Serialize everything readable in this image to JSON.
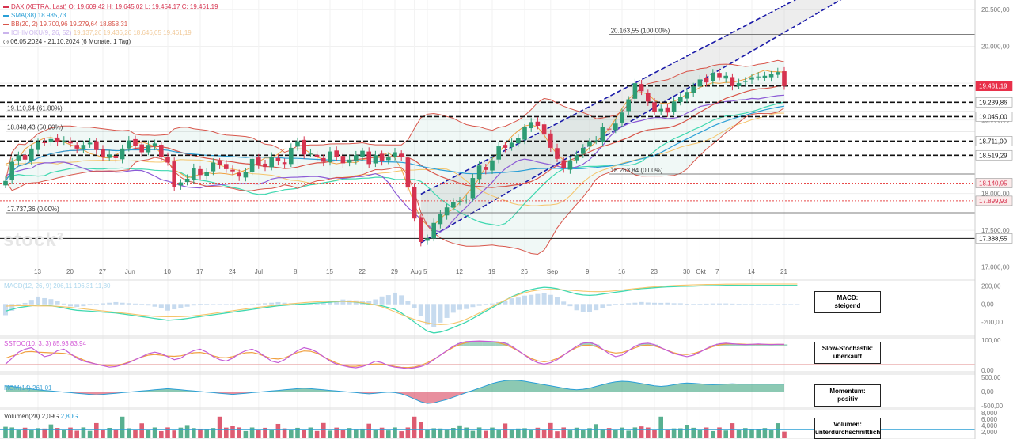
{
  "legend": {
    "title": "DAX (XETRA, Last)",
    "ohlc": "O: 19.609,42  H: 19.645,02  L: 19.454,17  C: 19.461,19",
    "sma": "SMA(38)",
    "sma_val": "18.985,73",
    "bb": "BB(20, 2)",
    "bb_vals": "19.700,96  19.279,64  18.858,31",
    "ichimoku": "ICHIMOKU(9, 26, 52)",
    "ichimoku_vals": "19.137,26  19.436,26  18.646,05  19.461,19",
    "range": "06.05.2024 - 21.10.2024  (6 Monate, 1 Tag)"
  },
  "logo_text": "stock³",
  "colors": {
    "up": "#2e9c74",
    "down": "#d6334f",
    "sma": "#2a9fd6",
    "bb": "#d8554a",
    "tenkan": "#f0a040",
    "kijun": "#8c5bd6",
    "span_a": "#3fd8b0",
    "span_b": "#f5c46a",
    "channel": "#1a1aa8",
    "ask": "#e8304a"
  },
  "price_axis": {
    "ticks": [
      "20.500,00",
      "20.000,00",
      "19.500,00",
      "19.000,00",
      "18.500,00",
      "18.000,00",
      "17.500,00",
      "17.000,00"
    ],
    "tick_values": [
      20500,
      20000,
      19500,
      19000,
      18500,
      18000,
      17500,
      17000
    ],
    "ylim": [
      16920,
      20630
    ]
  },
  "x_axis": {
    "labels": [
      "13",
      "20",
      "27",
      "Jun",
      "10",
      "17",
      "24",
      "Jul",
      "8",
      "15",
      "22",
      "29",
      "Aug",
      "5",
      "12",
      "19",
      "26",
      "Sep",
      "9",
      "16",
      "23",
      "30",
      "Okt",
      "7",
      "14",
      "21"
    ],
    "label_index": [
      5,
      10,
      15,
      19,
      25,
      30,
      35,
      39,
      45,
      50,
      55,
      60,
      63,
      65,
      70,
      75,
      80,
      84,
      90,
      95,
      100,
      105,
      107,
      110,
      115,
      120
    ]
  },
  "price_labels": [
    {
      "text": "19.461,19",
      "value": 19461.19,
      "style": "red"
    },
    {
      "text": "19.239,86",
      "value": 19239.86,
      "style": "white"
    },
    {
      "text": "19.045,00",
      "value": 19045.0,
      "style": "white"
    },
    {
      "text": "18.711,00",
      "value": 18711.0,
      "style": "white"
    },
    {
      "text": "18.519,29",
      "value": 18519.29,
      "style": "white"
    },
    {
      "text": "18.140,95",
      "value": 18140.95,
      "style": "redtext"
    },
    {
      "text": "17.899,93",
      "value": 17899.93,
      "style": "redtext"
    },
    {
      "text": "17.388,55",
      "value": 17388.55,
      "style": "white"
    }
  ],
  "fib_labels": [
    {
      "text": "20.163,55 (100.00%)",
      "value": 20163.55,
      "x_index": 93
    },
    {
      "text": "19.110,64 (61.80%)",
      "value": 19110.64,
      "x_index": 0
    },
    {
      "text": "18.848,43 (50.00%)",
      "value": 18848.43,
      "x_index": 0
    },
    {
      "text": "17.737,36 (0.00%)",
      "value": 17737.36,
      "x_index": 0
    },
    {
      "text": "18.263,84 (0.00%)",
      "value": 18263.84,
      "x_index": 93
    }
  ],
  "panels": {
    "macd": {
      "label": "MACD(12, 26, 9)",
      "values": "206,11  196,31  11,80",
      "ticks": [
        "200,00",
        "0,00",
        "-200,00"
      ],
      "annotation": "MACD:\nsteigend"
    },
    "stoch": {
      "label": "SSTOC(10, 3, 3)",
      "values": "85,93  83,94",
      "ticks": [
        "100,00",
        "0,00"
      ],
      "annotation": "Slow-Stochastik:\nüberkauft"
    },
    "momentum": {
      "label": "MOM(14)",
      "values": "261,01",
      "ticks": [
        "500,00",
        "0,00",
        "-500,00"
      ],
      "annotation": "Momentum:\npositiv"
    },
    "volume": {
      "label": "Volumen(28)",
      "values": "2,09G",
      "values2": "2,80G",
      "ticks": [
        "8,000",
        "6,000",
        "4,000",
        "2,000"
      ],
      "annotation": "Volumen:\nunterdurchschnittlich"
    }
  },
  "chart_data": {
    "type": "candlestick",
    "title": "DAX (XETRA, Last)",
    "period": "06.05.2024 - 21.10.2024",
    "approx_closes": [
      18170,
      18430,
      18520,
      18460,
      18610,
      18700,
      18690,
      18740,
      18700,
      18720,
      18680,
      18610,
      18660,
      18690,
      18590,
      18490,
      18530,
      18480,
      18610,
      18720,
      18650,
      18560,
      18660,
      18680,
      18500,
      18420,
      18090,
      18150,
      18200,
      18350,
      18250,
      18290,
      18420,
      18390,
      18330,
      18300,
      18230,
      18290,
      18470,
      18390,
      18360,
      18500,
      18440,
      18400,
      18620,
      18710,
      18530,
      18540,
      18500,
      18430,
      18570,
      18490,
      18410,
      18460,
      18520,
      18580,
      18400,
      18520,
      18440,
      18500,
      18560,
      18500,
      18080,
      17660,
      17340,
      17390,
      17600,
      17720,
      17810,
      17880,
      17900,
      17930,
      18210,
      18380,
      18320,
      18450,
      18640,
      18620,
      18690,
      18750,
      18900,
      18970,
      18920,
      18800,
      18620,
      18470,
      18340,
      18450,
      18520,
      18620,
      18710,
      18720,
      18900,
      18870,
      18950,
      19100,
      19280,
      19500,
      19390,
      19250,
      19110,
      19150,
      19100,
      19250,
      19310,
      19380,
      19450,
      19550,
      19510,
      19640,
      19580,
      19600,
      19460,
      19500,
      19530,
      19580,
      19590,
      19600,
      19620,
      19650,
      19461.19
    ],
    "channel": {
      "points": [
        [
          64,
          17990
        ],
        [
          126,
          20830
        ]
      ],
      "lower": [
        [
          64,
          17330
        ],
        [
          130,
          20700
        ]
      ]
    },
    "macd": [
      -80,
      -60,
      -40,
      -30,
      -20,
      -10,
      -15,
      -20,
      -30,
      -45,
      -60,
      -70,
      -75,
      -80,
      -85,
      -90,
      -95,
      -100,
      -110,
      -120,
      -130,
      -140,
      -150,
      -160,
      -170,
      -180,
      -175,
      -170,
      -160,
      -150,
      -140,
      -130,
      -120,
      -110,
      -100,
      -90,
      -80,
      -70,
      -60,
      -50,
      -40,
      -30,
      -20,
      -15,
      -10,
      -5,
      0,
      5,
      10,
      15,
      20,
      25,
      30,
      25,
      20,
      10,
      0,
      -10,
      -20,
      -40,
      -60,
      -100,
      -150,
      -200,
      -250,
      -300,
      -320,
      -310,
      -290,
      -260,
      -230,
      -200,
      -160,
      -120,
      -80,
      -40,
      0,
      40,
      80,
      110,
      140,
      160,
      175,
      185,
      180,
      170,
      150,
      130,
      110,
      100,
      95,
      100,
      110,
      120,
      130,
      140,
      150,
      160,
      170,
      175,
      180,
      185,
      190,
      192,
      195,
      196,
      198,
      200,
      202,
      204,
      205,
      206,
      206,
      206,
      206,
      206,
      206,
      206,
      206,
      206,
      206,
      206,
      206
    ],
    "stoch": [
      20,
      40,
      60,
      70,
      75,
      60,
      45,
      50,
      65,
      70,
      55,
      40,
      30,
      25,
      20,
      15,
      10,
      12,
      18,
      25,
      35,
      45,
      55,
      60,
      55,
      45,
      35,
      40,
      55,
      65,
      70,
      60,
      45,
      35,
      30,
      40,
      55,
      65,
      70,
      60,
      45,
      30,
      25,
      35,
      50,
      65,
      75,
      70,
      60,
      45,
      30,
      20,
      15,
      10,
      8,
      12,
      20,
      30,
      25,
      15,
      10,
      8,
      5,
      8,
      12,
      20,
      35,
      50,
      65,
      80,
      90,
      95,
      96,
      97,
      96,
      95,
      94,
      90,
      80,
      65,
      50,
      35,
      25,
      20,
      25,
      35,
      50,
      65,
      80,
      90,
      92,
      85,
      70,
      55,
      45,
      50,
      65,
      80,
      88,
      90,
      85,
      75,
      65,
      55,
      50,
      45,
      50,
      60,
      72,
      82,
      88,
      90,
      88,
      86,
      85,
      86,
      87,
      86,
      85,
      86,
      85.93
    ],
    "momentum": [
      200,
      180,
      150,
      120,
      90,
      60,
      40,
      20,
      0,
      -20,
      -40,
      -60,
      -80,
      -100,
      -120,
      -100,
      -80,
      -60,
      -40,
      -20,
      0,
      20,
      40,
      60,
      80,
      100,
      80,
      60,
      40,
      20,
      0,
      -20,
      -40,
      -60,
      -80,
      -100,
      -80,
      -60,
      -40,
      -20,
      0,
      20,
      40,
      60,
      80,
      100,
      120,
      100,
      80,
      60,
      40,
      20,
      0,
      -20,
      -40,
      -60,
      -80,
      -60,
      -40,
      -20,
      -40,
      -80,
      -160,
      -260,
      -360,
      -420,
      -400,
      -340,
      -280,
      -200,
      -120,
      -40,
      40,
      120,
      200,
      280,
      340,
      380,
      400,
      390,
      360,
      320,
      280,
      240,
      200,
      160,
      120,
      80,
      60,
      80,
      120,
      180,
      240,
      300,
      340,
      360,
      350,
      320,
      280,
      240,
      200,
      180,
      200,
      240,
      280,
      300,
      290,
      270,
      250,
      240,
      250,
      260,
      270,
      261,
      261,
      261,
      261,
      261,
      261,
      261,
      261
    ],
    "volume_ma": 2.8,
    "volume_last": 2.09
  }
}
